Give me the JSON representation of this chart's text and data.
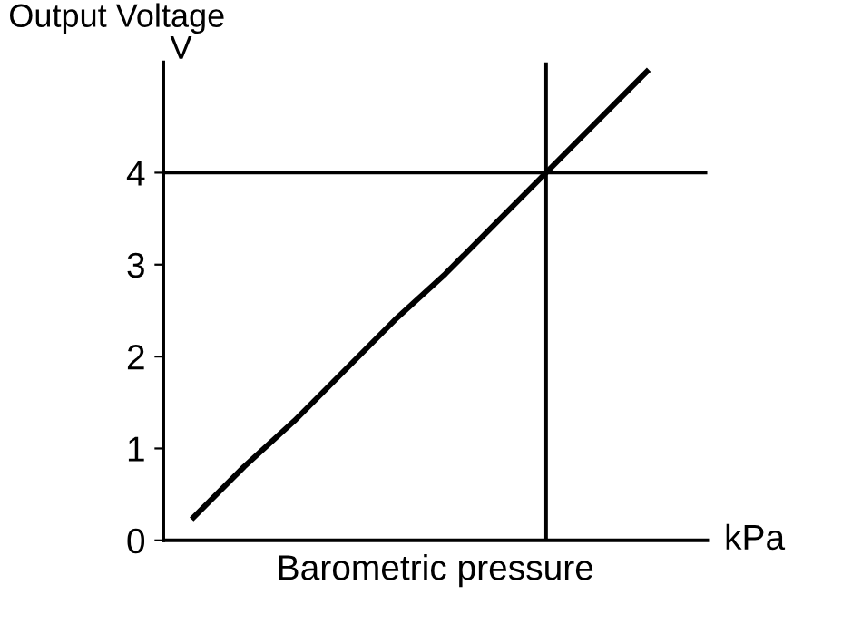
{
  "chart_data": {
    "type": "line",
    "title": "Output Voltage",
    "ylabel": "V",
    "xlabel": "Barometric pressure",
    "annotations": [
      "kPa"
    ],
    "categories": [
      null,
      null,
      null,
      null,
      null,
      null,
      null,
      null,
      null,
      null
    ],
    "series": [
      {
        "color": "#000000",
        "values": [
          0.25,
          0.8,
          1.3,
          1.85,
          2.4,
          2.9,
          3.45,
          4.0,
          4.55,
          5.1
        ]
      }
    ],
    "ylim": [
      0,
      5.2
    ],
    "yticks": [
      0,
      1,
      2,
      3,
      4
    ],
    "ref_lines": [
      {
        "axis": "y",
        "value": 4,
        "color": "#000000"
      }
    ],
    "grid": false,
    "marker": "none",
    "line_style": "solid"
  }
}
